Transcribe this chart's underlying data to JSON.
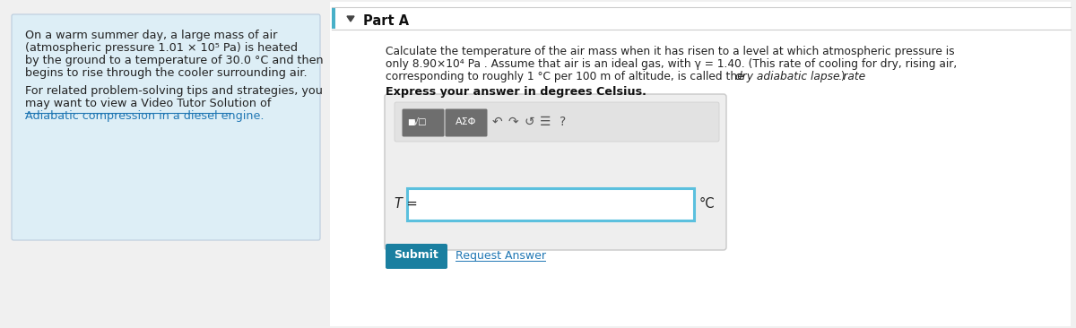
{
  "bg_color": "#f0f0f0",
  "left_panel_bg": "#ddeef6",
  "right_panel_bg": "#ffffff",
  "left_panel_link": "Adiabatic compression in a diesel engine",
  "part_label": "Part A",
  "problem_text_line1": "Calculate the temperature of the air mass when it has risen to a level at which atmospheric pressure is",
  "problem_text_line2": "only 8.90×10⁴ Pa . Assume that air is an ideal gas, with γ = 1.40. (This rate of cooling for dry, rising air,",
  "problem_text_line3": "corresponding to roughly 1 °C per 100 m of altitude, is called the ",
  "problem_text_italic": "dry adiabatic lapse rate",
  "problem_text_end": ".)",
  "bold_text": "Express your answer in degrees Celsius.",
  "T_label": "T =",
  "unit_label": "°C",
  "submit_text": "Submit",
  "request_text": "Request Answer",
  "submit_bg": "#1a7fa0",
  "submit_fg": "#ffffff",
  "link_color": "#2077b4",
  "input_border": "#5bc0de",
  "panel_border": "#cccccc"
}
